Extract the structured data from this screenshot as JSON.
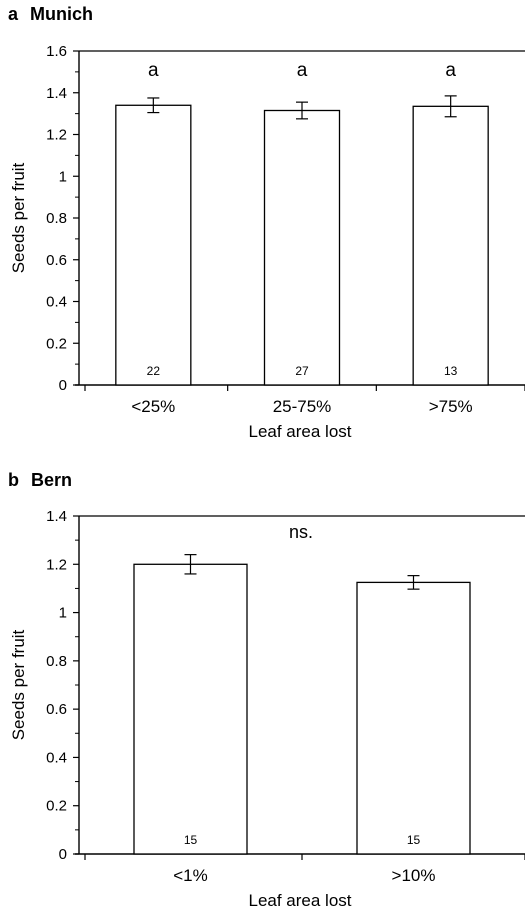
{
  "panels": [
    {
      "letter": "a",
      "location": "Munich"
    },
    {
      "letter": "b",
      "location": "Bern"
    }
  ],
  "chart_data": [
    {
      "type": "bar",
      "title": "Munich",
      "categories": [
        "<25%",
        "25-75%",
        ">75%"
      ],
      "values": [
        1.34,
        1.315,
        1.335
      ],
      "error": [
        0.035,
        0.04,
        0.05
      ],
      "bar_labels": [
        "22",
        "27",
        "13"
      ],
      "significance": [
        "a",
        "a",
        "a"
      ],
      "xlabel": "Leaf area lost",
      "ylabel": "Seeds per fruit",
      "ylim": [
        0,
        1.6
      ],
      "yticks": [
        0,
        0.2,
        0.4,
        0.6,
        0.8,
        1,
        1.2,
        1.4,
        1.6
      ],
      "ytick_labels": [
        "0",
        "0.2",
        "0.4",
        "0.6",
        "0.8",
        "1",
        "1.2",
        "1.4",
        "1.6"
      ],
      "grid": false
    },
    {
      "type": "bar",
      "title": "Bern",
      "categories": [
        "<1%",
        ">10%"
      ],
      "values": [
        1.2,
        1.125
      ],
      "error": [
        0.04,
        0.028
      ],
      "bar_labels": [
        "15",
        "15"
      ],
      "annotation": "ns.",
      "xlabel": "Leaf area lost",
      "ylabel": "Seeds per fruit",
      "ylim": [
        0,
        1.4
      ],
      "yticks": [
        0,
        0.2,
        0.4,
        0.6,
        0.8,
        1,
        1.2,
        1.4
      ],
      "ytick_labels": [
        "0",
        "0.2",
        "0.4",
        "0.6",
        "0.8",
        "1",
        "1.2",
        "1.4"
      ],
      "grid": false
    }
  ]
}
